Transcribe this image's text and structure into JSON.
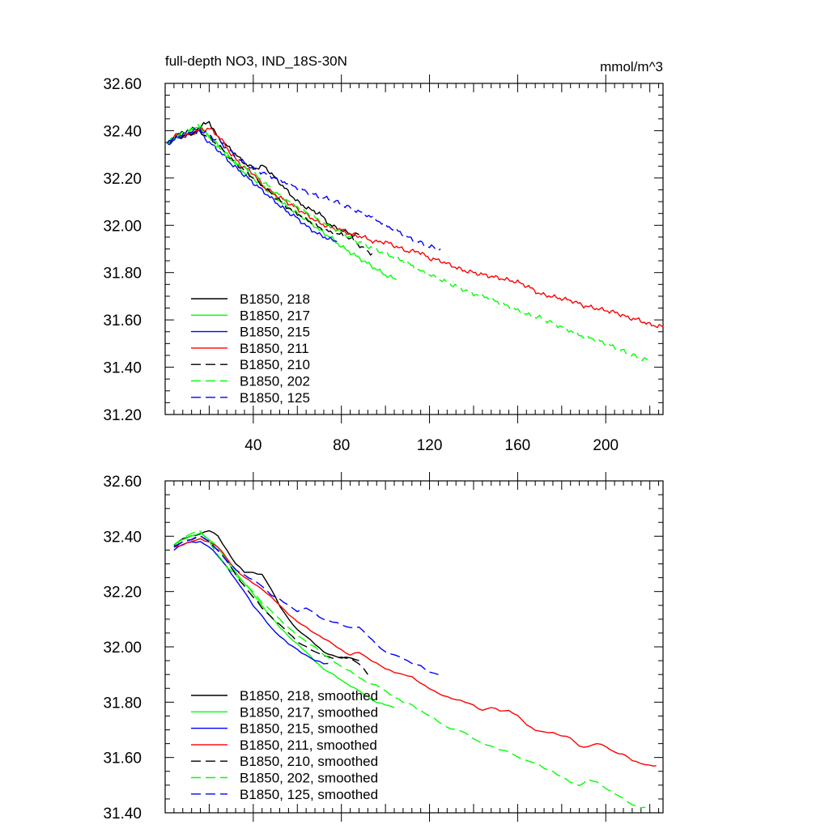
{
  "chart_data": [
    {
      "type": "line",
      "title": "full-depth NO3, IND_18S-30N",
      "units": "mmol/m^3",
      "xlabel": "",
      "ylabel": "",
      "xlim": [
        0,
        226
      ],
      "ylim": [
        31.2,
        32.6
      ],
      "xticks": [
        40,
        80,
        120,
        160,
        200
      ],
      "yticks": [
        31.2,
        31.4,
        31.6,
        31.8,
        32.0,
        32.2,
        32.4,
        32.6
      ],
      "xtick_labels": [
        "40",
        "80",
        "120",
        "160",
        "200"
      ],
      "ytick_labels": [
        "31.20",
        "31.40",
        "31.60",
        "31.80",
        "32.00",
        "32.20",
        "32.40",
        "32.60"
      ],
      "grid": false,
      "legend_position": "bottom-left",
      "series": [
        {
          "name": "B1850, 218",
          "color": "#000000",
          "dash": "solid",
          "x": [
            1,
            5,
            10,
            15,
            20,
            22,
            25,
            30,
            35,
            40,
            45,
            50,
            55,
            60,
            65,
            70,
            75,
            80,
            85,
            88
          ],
          "y": [
            32.34,
            32.38,
            32.4,
            32.41,
            32.44,
            32.4,
            32.36,
            32.32,
            32.27,
            32.24,
            32.25,
            32.2,
            32.15,
            32.1,
            32.07,
            32.05,
            32.0,
            31.98,
            31.96,
            31.96
          ]
        },
        {
          "name": "B1850, 217",
          "color": "#00ff00",
          "dash": "solid",
          "x": [
            1,
            5,
            10,
            15,
            20,
            25,
            30,
            35,
            40,
            45,
            50,
            55,
            60,
            65,
            70,
            75,
            80,
            85,
            90,
            95,
            100,
            105
          ],
          "y": [
            32.35,
            32.37,
            32.39,
            32.42,
            32.38,
            32.33,
            32.28,
            32.23,
            32.2,
            32.16,
            32.12,
            32.08,
            32.05,
            32.02,
            31.98,
            31.95,
            31.91,
            31.88,
            31.85,
            31.82,
            31.79,
            31.77
          ]
        },
        {
          "name": "B1850, 215",
          "color": "#0000ff",
          "dash": "solid",
          "x": [
            1,
            5,
            10,
            15,
            20,
            25,
            30,
            35,
            40,
            45,
            50,
            55,
            60,
            65,
            70,
            75,
            78
          ],
          "y": [
            32.34,
            32.37,
            32.38,
            32.4,
            32.35,
            32.31,
            32.26,
            32.22,
            32.18,
            32.14,
            32.1,
            32.06,
            32.03,
            31.99,
            31.96,
            31.94,
            31.93
          ]
        },
        {
          "name": "B1850, 211",
          "color": "#ff0000",
          "dash": "solid",
          "x": [
            1,
            5,
            10,
            15,
            20,
            25,
            30,
            35,
            40,
            45,
            50,
            55,
            60,
            65,
            70,
            75,
            80,
            85,
            90,
            95,
            100,
            105,
            110,
            115,
            120,
            125,
            130,
            135,
            140,
            145,
            150,
            155,
            160,
            165,
            170,
            175,
            180,
            185,
            190,
            195,
            200,
            205,
            210,
            215,
            220,
            226
          ],
          "y": [
            32.35,
            32.38,
            32.38,
            32.4,
            32.41,
            32.37,
            32.3,
            32.25,
            32.22,
            32.16,
            32.13,
            32.1,
            32.07,
            32.04,
            32.01,
            31.99,
            31.98,
            31.96,
            31.95,
            31.93,
            31.93,
            31.91,
            31.89,
            31.89,
            31.86,
            31.85,
            31.83,
            31.81,
            31.8,
            31.79,
            31.78,
            31.77,
            31.76,
            31.74,
            31.71,
            31.7,
            31.69,
            31.68,
            31.66,
            31.65,
            31.64,
            31.63,
            31.61,
            31.6,
            31.58,
            31.57
          ]
        },
        {
          "name": "B1850, 210",
          "color": "#000000",
          "dash": "dashed",
          "x": [
            1,
            5,
            10,
            15,
            20,
            25,
            30,
            35,
            40,
            45,
            50,
            55,
            60,
            65,
            70,
            75,
            80,
            85,
            90,
            94
          ],
          "y": [
            32.35,
            32.37,
            32.38,
            32.4,
            32.37,
            32.33,
            32.28,
            32.24,
            32.2,
            32.16,
            32.12,
            32.08,
            32.05,
            32.02,
            31.99,
            31.97,
            31.96,
            31.94,
            31.9,
            31.88
          ]
        },
        {
          "name": "B1850, 202",
          "color": "#00ff00",
          "dash": "dashed",
          "x": [
            1,
            5,
            10,
            15,
            20,
            25,
            30,
            35,
            40,
            45,
            50,
            55,
            60,
            65,
            70,
            75,
            80,
            85,
            90,
            95,
            100,
            105,
            110,
            115,
            120,
            125,
            130,
            135,
            140,
            145,
            150,
            155,
            160,
            165,
            170,
            175,
            180,
            185,
            190,
            195,
            200,
            205,
            210,
            215,
            219
          ],
          "y": [
            32.35,
            32.38,
            32.4,
            32.42,
            32.37,
            32.32,
            32.28,
            32.25,
            32.22,
            32.18,
            32.14,
            32.11,
            32.08,
            32.05,
            32.02,
            31.99,
            31.97,
            31.94,
            31.92,
            31.9,
            31.88,
            31.86,
            31.84,
            31.81,
            31.79,
            31.77,
            31.75,
            31.73,
            31.71,
            31.7,
            31.68,
            31.66,
            31.64,
            31.62,
            31.61,
            31.59,
            31.57,
            31.55,
            31.53,
            31.52,
            31.5,
            31.48,
            31.46,
            31.44,
            31.43
          ]
        },
        {
          "name": "B1850, 125",
          "color": "#0000ff",
          "dash": "dashed",
          "x": [
            1,
            5,
            10,
            15,
            20,
            25,
            30,
            35,
            40,
            45,
            50,
            55,
            60,
            65,
            70,
            75,
            80,
            85,
            90,
            95,
            100,
            105,
            110,
            115,
            120,
            125
          ],
          "y": [
            32.35,
            32.37,
            32.39,
            32.41,
            32.38,
            32.35,
            32.31,
            32.27,
            32.24,
            32.22,
            32.2,
            32.18,
            32.16,
            32.14,
            32.12,
            32.11,
            32.09,
            32.07,
            32.05,
            32.03,
            32.0,
            31.98,
            31.95,
            31.93,
            31.91,
            31.9
          ]
        }
      ]
    },
    {
      "type": "line",
      "title": "",
      "xlabel": "",
      "ylabel": "",
      "xlim": [
        0,
        226
      ],
      "ylim": [
        31.4,
        32.6
      ],
      "xticks": [
        40,
        80,
        120,
        160,
        200
      ],
      "yticks": [
        31.4,
        31.6,
        31.8,
        32.0,
        32.2,
        32.4,
        32.6
      ],
      "xtick_labels": [],
      "ytick_labels": [
        "31.40",
        "31.60",
        "31.80",
        "32.00",
        "32.20",
        "32.40",
        "32.60"
      ],
      "grid": false,
      "legend_position": "bottom-left",
      "series": [
        {
          "name": "B1850, 218, smoothed",
          "color": "#000000",
          "dash": "solid",
          "x": [
            4,
            8,
            12,
            16,
            20,
            24,
            28,
            32,
            36,
            40,
            44,
            48,
            52,
            56,
            60,
            64,
            68,
            72,
            76,
            80,
            84,
            88
          ],
          "y": [
            32.37,
            32.39,
            32.4,
            32.41,
            32.42,
            32.4,
            32.35,
            32.3,
            32.27,
            32.27,
            32.26,
            32.21,
            32.15,
            32.1,
            32.06,
            32.04,
            32.01,
            31.98,
            31.97,
            31.96,
            31.96,
            31.95
          ]
        },
        {
          "name": "B1850, 217, smoothed",
          "color": "#00ff00",
          "dash": "solid",
          "x": [
            4,
            8,
            12,
            16,
            20,
            24,
            28,
            32,
            36,
            40,
            44,
            48,
            52,
            56,
            60,
            64,
            68,
            72,
            76,
            80,
            84,
            88,
            92,
            96,
            100,
            104
          ],
          "y": [
            32.37,
            32.39,
            32.4,
            32.41,
            32.39,
            32.36,
            32.31,
            32.27,
            32.23,
            32.19,
            32.15,
            32.11,
            32.07,
            32.04,
            32.01,
            31.98,
            31.95,
            31.92,
            31.9,
            31.88,
            31.86,
            31.84,
            31.82,
            31.8,
            31.79,
            31.78
          ]
        },
        {
          "name": "B1850, 215, smoothed",
          "color": "#0000ff",
          "dash": "solid",
          "x": [
            4,
            8,
            12,
            16,
            20,
            24,
            28,
            32,
            36,
            40,
            44,
            48,
            52,
            56,
            60,
            64,
            68,
            72,
            74
          ],
          "y": [
            32.35,
            32.37,
            32.38,
            32.38,
            32.36,
            32.33,
            32.29,
            32.24,
            32.2,
            32.15,
            32.11,
            32.07,
            32.04,
            32.01,
            31.99,
            31.97,
            31.95,
            31.94,
            31.94
          ]
        },
        {
          "name": "B1850, 211, smoothed",
          "color": "#ff0000",
          "dash": "solid",
          "x": [
            4,
            8,
            12,
            16,
            20,
            24,
            28,
            32,
            36,
            40,
            44,
            48,
            52,
            56,
            60,
            64,
            68,
            72,
            76,
            80,
            84,
            88,
            92,
            96,
            100,
            104,
            108,
            112,
            116,
            120,
            124,
            128,
            132,
            136,
            140,
            144,
            148,
            152,
            156,
            160,
            164,
            168,
            172,
            176,
            180,
            184,
            188,
            192,
            196,
            200,
            204,
            208,
            212,
            216,
            220,
            223
          ],
          "y": [
            32.36,
            32.37,
            32.38,
            32.39,
            32.38,
            32.36,
            32.32,
            32.28,
            32.25,
            32.23,
            32.21,
            32.18,
            32.15,
            32.12,
            32.09,
            32.07,
            32.05,
            32.03,
            32.01,
            31.99,
            31.97,
            31.98,
            31.96,
            31.94,
            31.92,
            31.91,
            31.9,
            31.89,
            31.87,
            31.85,
            31.83,
            31.82,
            31.81,
            31.8,
            31.79,
            31.77,
            31.78,
            31.77,
            31.77,
            31.75,
            31.72,
            31.7,
            31.69,
            31.69,
            31.68,
            31.67,
            31.64,
            31.64,
            31.65,
            31.64,
            31.62,
            31.61,
            31.59,
            31.58,
            31.57,
            31.57
          ]
        },
        {
          "name": "B1850, 210, smoothed",
          "color": "#000000",
          "dash": "dashed",
          "x": [
            4,
            8,
            12,
            16,
            20,
            24,
            28,
            32,
            36,
            40,
            44,
            48,
            52,
            56,
            60,
            64,
            68,
            72,
            76,
            80,
            84,
            88,
            92
          ],
          "y": [
            32.36,
            32.38,
            32.39,
            32.4,
            32.38,
            32.35,
            32.31,
            32.26,
            32.22,
            32.18,
            32.14,
            32.11,
            32.08,
            32.05,
            32.02,
            32.0,
            31.98,
            31.97,
            31.96,
            31.96,
            31.96,
            31.94,
            31.9
          ]
        },
        {
          "name": "B1850, 202, smoothed",
          "color": "#00ff00",
          "dash": "dashed",
          "x": [
            4,
            8,
            12,
            16,
            20,
            24,
            28,
            32,
            36,
            40,
            44,
            48,
            52,
            56,
            60,
            64,
            68,
            72,
            76,
            80,
            84,
            88,
            92,
            96,
            100,
            104,
            108,
            112,
            116,
            120,
            124,
            128,
            132,
            136,
            140,
            144,
            148,
            152,
            156,
            160,
            164,
            168,
            172,
            176,
            180,
            184,
            188,
            192,
            196,
            200,
            204,
            208,
            212,
            216,
            218
          ],
          "y": [
            32.37,
            32.39,
            32.41,
            32.42,
            32.38,
            32.33,
            32.29,
            32.26,
            32.23,
            32.2,
            32.16,
            32.13,
            32.1,
            32.07,
            32.04,
            32.02,
            32.0,
            31.97,
            31.95,
            31.93,
            31.91,
            31.89,
            31.87,
            31.86,
            31.84,
            31.82,
            31.8,
            31.79,
            31.77,
            31.75,
            31.73,
            31.71,
            31.7,
            31.69,
            31.67,
            31.65,
            31.64,
            31.63,
            31.62,
            31.6,
            31.59,
            31.58,
            31.56,
            31.55,
            31.53,
            31.51,
            31.5,
            31.52,
            31.51,
            31.49,
            31.47,
            31.45,
            31.43,
            31.42,
            31.42
          ]
        },
        {
          "name": "B1850, 125, smoothed",
          "color": "#0000ff",
          "dash": "dashed",
          "x": [
            4,
            8,
            12,
            16,
            20,
            24,
            28,
            32,
            36,
            40,
            44,
            48,
            52,
            56,
            60,
            64,
            68,
            72,
            76,
            80,
            84,
            88,
            92,
            96,
            100,
            104,
            108,
            112,
            116,
            120,
            124
          ],
          "y": [
            32.36,
            32.38,
            32.39,
            32.4,
            32.38,
            32.35,
            32.31,
            32.28,
            32.26,
            32.24,
            32.22,
            32.19,
            32.17,
            32.15,
            32.13,
            32.14,
            32.12,
            32.1,
            32.09,
            32.08,
            32.07,
            32.07,
            32.04,
            32.01,
            31.98,
            31.97,
            31.96,
            31.94,
            31.93,
            31.91,
            31.9
          ]
        }
      ]
    }
  ]
}
